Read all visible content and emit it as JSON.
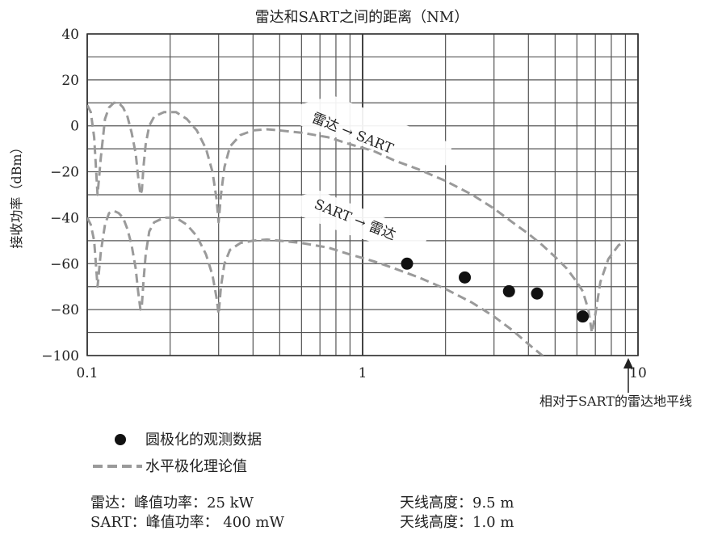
{
  "chart_data": {
    "type": "line",
    "title": "雷达和SART之间的距离（NM）",
    "xlabel": "",
    "ylabel": "接收功率（dBm）",
    "x_scale": "log",
    "xlim": [
      0.1,
      10
    ],
    "ylim": [
      -100,
      40
    ],
    "grid": true,
    "x_ticks": [
      {
        "value": 0.1,
        "label": "0.1"
      },
      {
        "value": 1,
        "label": "1"
      },
      {
        "value": 10,
        "label": "10"
      }
    ],
    "y_ticks": [
      {
        "value": 40,
        "label": "40"
      },
      {
        "value": 20,
        "label": "20"
      },
      {
        "value": 0,
        "label": "0"
      },
      {
        "value": -20,
        "label": "−20"
      },
      {
        "value": -40,
        "label": "−40"
      },
      {
        "value": -60,
        "label": "−60"
      },
      {
        "value": -80,
        "label": "−80"
      },
      {
        "value": -100,
        "label": "−100"
      }
    ],
    "series": [
      {
        "key": "radar_to_sart_theory",
        "style": "dashed",
        "color": "#9a9a9a",
        "x": [
          0.1,
          0.103,
          0.106,
          0.109,
          0.112,
          0.116,
          0.12,
          0.125,
          0.13,
          0.135,
          0.14,
          0.145,
          0.15,
          0.153,
          0.156,
          0.158,
          0.16,
          0.163,
          0.168,
          0.175,
          0.19,
          0.21,
          0.23,
          0.25,
          0.27,
          0.285,
          0.295,
          0.3,
          0.306,
          0.315,
          0.33,
          0.36,
          0.4,
          0.45,
          0.5,
          0.6,
          0.75,
          0.9,
          1.1,
          1.3,
          1.6,
          2.0,
          2.5,
          3.0,
          3.5,
          4.0,
          4.5,
          5.0,
          5.5,
          6.0,
          6.3,
          6.6,
          6.8,
          7.0,
          7.3,
          7.8,
          8.5,
          9.0
        ],
        "y": [
          9,
          6,
          -5,
          -30,
          -14,
          3,
          8,
          10,
          10,
          8,
          4,
          -3,
          -12,
          -22,
          -30,
          -28,
          -18,
          -8,
          0,
          4,
          6,
          6,
          3,
          -2,
          -10,
          -20,
          -32,
          -42,
          -30,
          -18,
          -9,
          -4,
          -2,
          -1.5,
          -2,
          -3,
          -5,
          -8,
          -11,
          -15,
          -19,
          -24,
          -30,
          -36,
          -42,
          -47,
          -52,
          -57,
          -62,
          -68,
          -72,
          -80,
          -90,
          -82,
          -68,
          -58,
          -52,
          -50
        ]
      },
      {
        "key": "sart_to_radar_theory",
        "style": "dashed",
        "color": "#9a9a9a",
        "x": [
          0.1,
          0.103,
          0.106,
          0.109,
          0.112,
          0.116,
          0.12,
          0.125,
          0.13,
          0.135,
          0.14,
          0.145,
          0.15,
          0.153,
          0.156,
          0.158,
          0.16,
          0.163,
          0.168,
          0.175,
          0.19,
          0.21,
          0.23,
          0.25,
          0.27,
          0.285,
          0.295,
          0.3,
          0.306,
          0.315,
          0.33,
          0.36,
          0.4,
          0.45,
          0.5,
          0.6,
          0.75,
          0.9,
          1.1,
          1.3,
          1.6,
          2.0,
          2.5,
          3.0,
          3.5,
          4.0,
          4.5,
          5.0,
          5.5,
          6.0
        ],
        "y": [
          -40,
          -43,
          -50,
          -70,
          -55,
          -43,
          -38,
          -37,
          -38,
          -40,
          -45,
          -52,
          -62,
          -72,
          -80,
          -78,
          -68,
          -56,
          -46,
          -42,
          -40,
          -40,
          -43,
          -48,
          -56,
          -65,
          -75,
          -82,
          -70,
          -60,
          -54,
          -51,
          -50,
          -49.5,
          -50,
          -51,
          -53,
          -56,
          -59,
          -62,
          -66,
          -71,
          -77,
          -83,
          -89,
          -95,
          -100,
          -104,
          -108,
          -112
        ]
      },
      {
        "key": "circular_measured",
        "name": "圆极化的观测数据",
        "style": "points",
        "color": "#111111",
        "x": [
          1.45,
          2.35,
          3.4,
          4.3,
          6.3
        ],
        "y": [
          -60,
          -66,
          -72,
          -73,
          -83
        ]
      }
    ],
    "annotations": [
      {
        "key": "radar_to_sart",
        "text": "雷达 → SART"
      },
      {
        "key": "sart_to_radar",
        "text": "SART → 雷达"
      },
      {
        "key": "horizon",
        "text": "相对于SART的雷达地平线"
      }
    ],
    "legend": {
      "placement": "bottom-left",
      "entries": [
        {
          "marker": "dot",
          "label": "圆极化的观测数据"
        },
        {
          "marker": "dash",
          "label": "水平极化理论值"
        }
      ]
    }
  },
  "specs": {
    "radar_peak": "雷达：峰值功率：25 kW",
    "radar_height": "天线高度：9.5 m",
    "sart_peak": "SART：峰值功率： 400 mW",
    "sart_height": "天线高度：1.0 m"
  }
}
